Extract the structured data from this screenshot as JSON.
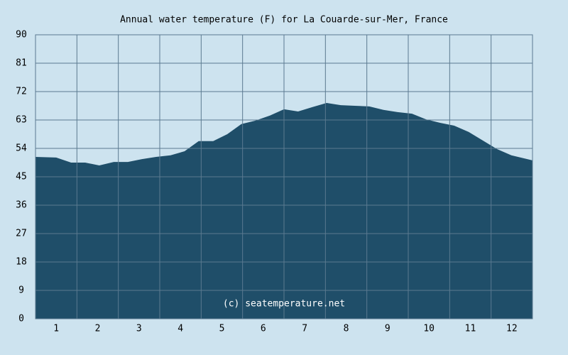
{
  "chart_data": {
    "type": "area",
    "title": "Annual water temperature (F) for La Couarde-sur-Mer, France",
    "annotation": "(c) seatemperature.net",
    "x": [
      0,
      0.5,
      0.86,
      1.2,
      1.54,
      1.89,
      2.23,
      2.57,
      2.91,
      3.26,
      3.6,
      3.94,
      4.29,
      4.63,
      4.97,
      5.31,
      5.66,
      6.0,
      6.34,
      6.69,
      7.03,
      7.37,
      7.71,
      8.06,
      8.4,
      8.74,
      9.09,
      9.43,
      9.77,
      10.11,
      10.46,
      10.8,
      11.14,
      11.49,
      12
    ],
    "values": [
      51.3,
      51.1,
      49.5,
      49.5,
      48.6,
      49.7,
      49.7,
      50.6,
      51.3,
      51.8,
      53.1,
      56.3,
      56.3,
      58.5,
      61.7,
      62.8,
      64.4,
      66.4,
      65.7,
      67.1,
      68.4,
      67.7,
      67.5,
      67.3,
      66.2,
      65.5,
      65.0,
      63.2,
      62.1,
      61.2,
      59.2,
      56.5,
      53.8,
      51.8,
      50.2
    ],
    "color": "#1f4e69",
    "xlim": [
      0,
      12
    ],
    "xticks": [
      {
        "value": 0.5,
        "label": "1"
      },
      {
        "value": 1.5,
        "label": "2"
      },
      {
        "value": 2.5,
        "label": "3"
      },
      {
        "value": 3.5,
        "label": "4"
      },
      {
        "value": 4.5,
        "label": "5"
      },
      {
        "value": 5.5,
        "label": "6"
      },
      {
        "value": 6.5,
        "label": "7"
      },
      {
        "value": 7.5,
        "label": "8"
      },
      {
        "value": 8.5,
        "label": "9"
      },
      {
        "value": 9.5,
        "label": "10"
      },
      {
        "value": 10.5,
        "label": "11"
      },
      {
        "value": 11.5,
        "label": "12"
      }
    ],
    "ylim": [
      0,
      90
    ],
    "yticks": [
      0,
      9,
      18,
      27,
      36,
      45,
      54,
      63,
      72,
      81,
      90
    ],
    "grid": true
  }
}
